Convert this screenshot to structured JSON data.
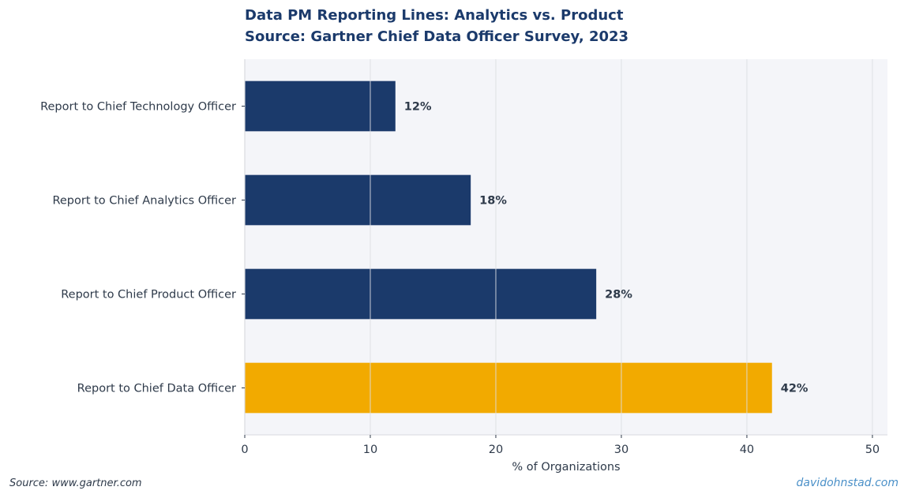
{
  "chart_data": {
    "type": "bar",
    "orientation": "horizontal",
    "title": "Data PM Reporting Lines: Analytics vs. Product",
    "subtitle": "Source: Gartner Chief Data Officer Survey, 2023",
    "categories": [
      "Report to Chief Technology Officer",
      "Report to Chief Analytics Officer",
      "Report to Chief Product Officer",
      "Report to Chief Data Officer"
    ],
    "values": [
      12,
      18,
      28,
      42
    ],
    "value_labels": [
      "12%",
      "18%",
      "28%",
      "42%"
    ],
    "bar_colors": [
      "#1b3a6b",
      "#1b3a6b",
      "#1b3a6b",
      "#f2aa00"
    ],
    "xlabel": "% of Organizations",
    "ylabel": "",
    "xlim": [
      0,
      51.2
    ],
    "xticks": [
      0,
      10,
      20,
      30,
      40,
      50
    ],
    "grid": true,
    "legend": "none"
  },
  "footer": {
    "source": "Source: www.gartner.com",
    "watermark": "davidohnstad.com"
  },
  "colors": {
    "plot_background": "#f4f5f9",
    "title": "#1b3a6b",
    "text": "#2e3a4a",
    "grid": "#dcdde2",
    "accent": "#f2aa00",
    "primary": "#1b3a6b"
  }
}
